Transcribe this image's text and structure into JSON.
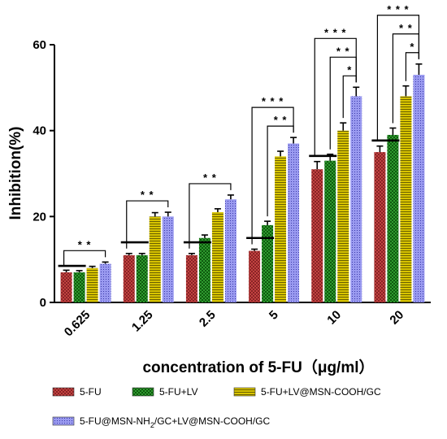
{
  "chart_data": {
    "type": "bar",
    "xlabel": "concentration of 5-FU（μg/ml）",
    "ylabel": "Inhibition(%)",
    "ylim": [
      0,
      60
    ],
    "yticks": [
      0,
      20,
      40,
      60
    ],
    "grid": false,
    "legend_position": "bottom",
    "categories": [
      "0.625",
      "1.25",
      "2.5",
      "5",
      "10",
      "20"
    ],
    "series": [
      {
        "name": "5-FU",
        "color": "#d24a4a",
        "pattern": "crosshatch",
        "values": [
          7,
          11,
          11,
          12,
          31,
          35
        ],
        "errors": [
          0.5,
          0.4,
          0.4,
          0.4,
          1.8,
          1.4
        ]
      },
      {
        "name": "5-FU+LV",
        "color": "#2f9a2f",
        "pattern": "checker",
        "values": [
          7,
          11,
          15,
          18,
          33,
          39
        ],
        "errors": [
          0.4,
          0.4,
          0.7,
          0.9,
          1.5,
          1.6
        ]
      },
      {
        "name": "5-FU+LV@MSN-COOH/GC",
        "color": "#c8b600",
        "pattern": "horizontal",
        "values": [
          8,
          20,
          21,
          34,
          40,
          48
        ],
        "errors": [
          0.4,
          0.9,
          0.8,
          1.2,
          1.8,
          2.4
        ]
      },
      {
        "name_parts": [
          "5-FU@MSN-NH",
          "2",
          "/GC+LV@MSN-COOH/GC"
        ],
        "color": "#8c8cea",
        "pattern": "dots",
        "values": [
          9,
          20,
          24,
          37,
          48,
          53
        ],
        "errors": [
          0.4,
          1.0,
          1.0,
          1.4,
          2.1,
          2.5
        ]
      }
    ],
    "annotations": [
      {
        "category": "0.625",
        "from": 0,
        "to": 3,
        "label": "* *",
        "level": 0
      },
      {
        "category": "1.25",
        "from": 0,
        "to": 3,
        "label": "* *",
        "level": 0
      },
      {
        "category": "2.5",
        "from": 0,
        "to": 3,
        "label": "* *",
        "level": 0
      },
      {
        "category": "5",
        "from": 1,
        "to": 3,
        "label": "* *",
        "level": 0
      },
      {
        "category": "5",
        "from": 0,
        "to": 3,
        "label": "* * *",
        "level": 1
      },
      {
        "category": "10",
        "from": 2,
        "to": 3,
        "label": "*",
        "level": 0
      },
      {
        "category": "10",
        "from": 1,
        "to": 3,
        "label": "* *",
        "level": 1
      },
      {
        "category": "10",
        "from": 0,
        "to": 3,
        "label": "* * *",
        "level": 2
      },
      {
        "category": "20",
        "from": 2,
        "to": 3,
        "label": "*",
        "level": 0
      },
      {
        "category": "20",
        "from": 1,
        "to": 3,
        "label": "* *",
        "level": 1
      },
      {
        "category": "20",
        "from": 0,
        "to": 3,
        "label": "* * *",
        "level": 2
      }
    ]
  }
}
